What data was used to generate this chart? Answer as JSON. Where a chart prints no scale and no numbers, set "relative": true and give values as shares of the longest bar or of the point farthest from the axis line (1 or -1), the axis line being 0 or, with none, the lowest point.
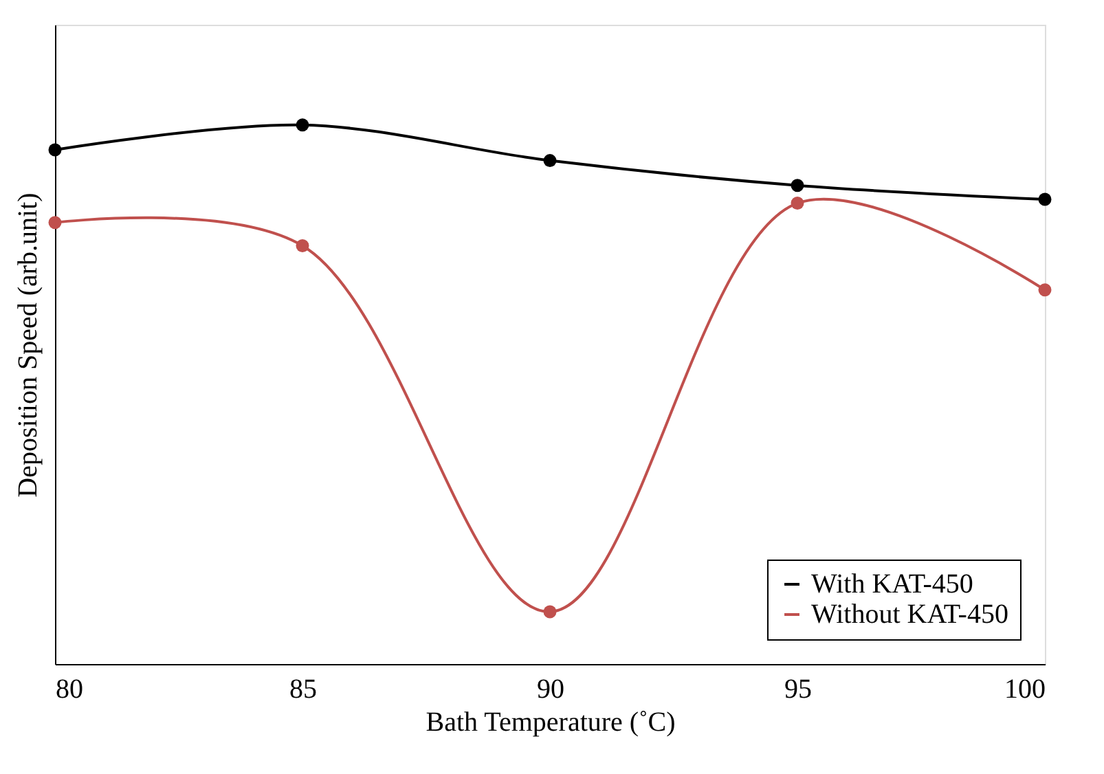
{
  "chart_data": {
    "type": "line",
    "xlabel": "Bath Temperature (˚C)",
    "ylabel": "Deposition Speed (arb.unit)",
    "relative": true,
    "x": [
      80,
      85,
      90,
      95,
      100
    ],
    "xlim": [
      80,
      100
    ],
    "xticks": [
      80,
      85,
      90,
      95,
      100
    ],
    "series": [
      {
        "name": "With KAT-450",
        "color": "#000000",
        "values": [
          0.954,
          1.0,
          0.934,
          0.888,
          0.862
        ]
      },
      {
        "name": "Without KAT-450",
        "color": "#c0504d",
        "values": [
          0.819,
          0.776,
          0.097,
          0.855,
          0.694
        ]
      }
    ],
    "marker": "circle",
    "line_style": "solid",
    "grid": false,
    "legend": "bottom right"
  }
}
